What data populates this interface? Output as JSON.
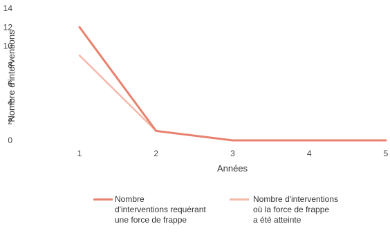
{
  "chart_data": {
    "type": "line",
    "xlabel": "Années",
    "ylabel": "Nombre d'interventions",
    "x": [
      1,
      2,
      3,
      4,
      5
    ],
    "ylim": [
      0,
      14
    ],
    "yticks": [
      0,
      2,
      4,
      6,
      8,
      10,
      12,
      14
    ],
    "grid": false,
    "legend_position": "bottom",
    "series": [
      {
        "name": "Nombre\nd'interventions requérant\nune force de frappe",
        "values": [
          12,
          1,
          0,
          0,
          0
        ],
        "color": "#e8826e"
      },
      {
        "name": "Nombre d'interventions\noù la force de frappe\na été atteinte",
        "values": [
          9,
          1,
          0,
          0,
          0
        ],
        "color": "#f4b8a8"
      }
    ]
  }
}
